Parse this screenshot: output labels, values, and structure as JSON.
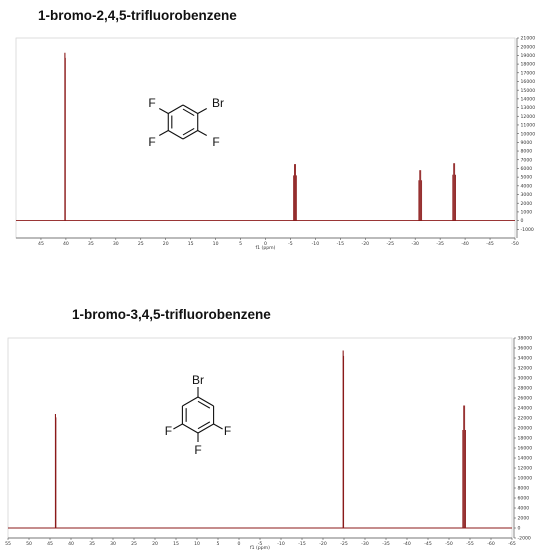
{
  "chart_data": [
    {
      "type": "line",
      "title": "1-bromo-2,4,5-trifluorobenzene",
      "xlabel": "f1 (ppm)",
      "xlim": [
        50,
        -50
      ],
      "ylim": [
        -2000,
        21000
      ],
      "x_reversed": true,
      "x_ticks": [
        "45",
        "40",
        "35",
        "30",
        "25",
        "20",
        "15",
        "10",
        "5",
        "0",
        "-5",
        "-10",
        "-15",
        "-20",
        "-25",
        "-30",
        "-35",
        "-40",
        "-45",
        "-50"
      ],
      "y_ticks": [
        "-1000",
        "0",
        "1000",
        "2000",
        "3000",
        "4000",
        "5000",
        "6000",
        "7000",
        "8000",
        "9000",
        "10000",
        "11000",
        "12000",
        "13000",
        "14000",
        "15000",
        "16000",
        "17000",
        "18000",
        "19000",
        "20000",
        "21000"
      ],
      "color": "#8b1a1a",
      "peaks": [
        {
          "ppm": 40.2,
          "height": 19300
        },
        {
          "ppm": -5.9,
          "height": 6500
        },
        {
          "ppm": -31.0,
          "height": 5800
        },
        {
          "ppm": -37.8,
          "height": 6600
        }
      ],
      "structure": {
        "substituents": [
          "F",
          "Br",
          "F",
          "F"
        ]
      }
    },
    {
      "type": "line",
      "title": "1-bromo-3,4,5-trifluorobenzene",
      "xlabel": "f1 (ppm)",
      "xlim": [
        55,
        -65
      ],
      "ylim": [
        -2000,
        38000
      ],
      "x_reversed": true,
      "x_ticks": [
        "55",
        "50",
        "45",
        "40",
        "35",
        "30",
        "25",
        "20",
        "15",
        "10",
        "5",
        "0",
        "-5",
        "-10",
        "-15",
        "-20",
        "-25",
        "-30",
        "-35",
        "-40",
        "-45",
        "-50",
        "-55",
        "-60",
        "-65"
      ],
      "y_ticks": [
        "-2000",
        "0",
        "2000",
        "4000",
        "6000",
        "8000",
        "10000",
        "12000",
        "14000",
        "16000",
        "18000",
        "20000",
        "22000",
        "24000",
        "26000",
        "28000",
        "30000",
        "32000",
        "34000",
        "36000",
        "38000"
      ],
      "color": "#8b1a1a",
      "peaks": [
        {
          "ppm": 43.7,
          "height": 22800
        },
        {
          "ppm": -24.8,
          "height": 35500
        },
        {
          "ppm": -53.6,
          "height": 24500
        }
      ],
      "structure": {
        "substituents": [
          "Br",
          "F",
          "F",
          "F"
        ]
      }
    }
  ]
}
